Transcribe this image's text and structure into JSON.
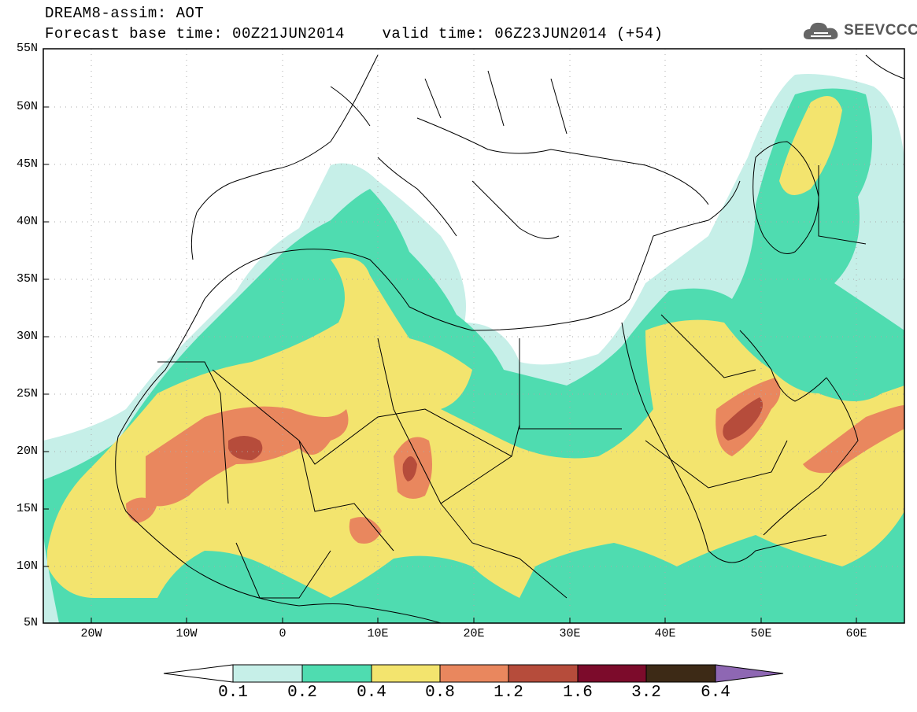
{
  "title": {
    "line1": "DREAM8-assim: AOT",
    "base_label": "Forecast base time: 00Z21JUN2014",
    "valid_label": "valid time: 06Z23JUN2014 (+54)"
  },
  "logo": {
    "icon": "cloud-icon",
    "text": "SEEVCCC"
  },
  "axes": {
    "lat_labels": [
      "55N",
      "50N",
      "45N",
      "40N",
      "35N",
      "30N",
      "25N",
      "20N",
      "15N",
      "10N",
      "5N"
    ],
    "lon_labels": [
      "20W",
      "10W",
      "0",
      "10E",
      "20E",
      "30E",
      "40E",
      "50E",
      "60E"
    ]
  },
  "colorbar": {
    "labels": [
      "0.1",
      "0.2",
      "0.4",
      "0.8",
      "1.2",
      "1.6",
      "3.2",
      "6.4"
    ],
    "colors": [
      "#ffffff",
      "#c6efe8",
      "#4fdcb0",
      "#f3e46e",
      "#e9875e",
      "#b64c3b",
      "#7c0b2b",
      "#3d2a16",
      "#8e67b3"
    ]
  }
}
